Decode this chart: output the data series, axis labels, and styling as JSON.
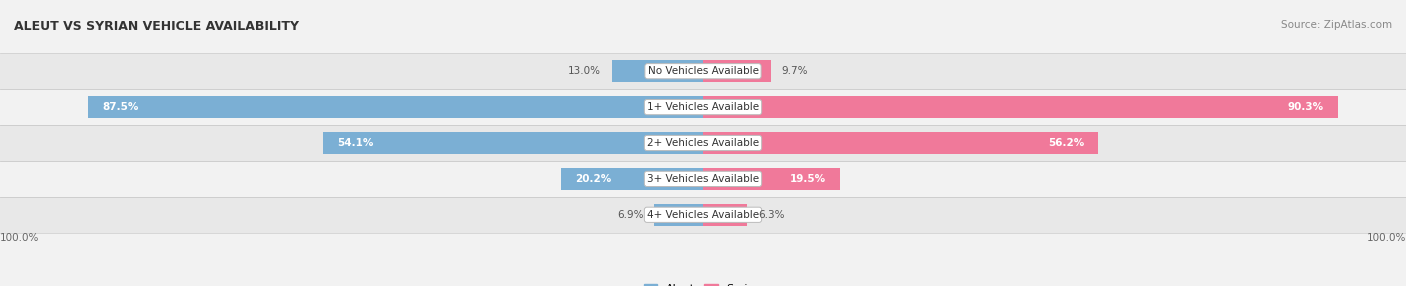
{
  "title": "ALEUT VS SYRIAN VEHICLE AVAILABILITY",
  "source": "Source: ZipAtlas.com",
  "categories": [
    "No Vehicles Available",
    "1+ Vehicles Available",
    "2+ Vehicles Available",
    "3+ Vehicles Available",
    "4+ Vehicles Available"
  ],
  "aleut_values": [
    13.0,
    87.5,
    54.1,
    20.2,
    6.9
  ],
  "syrian_values": [
    9.7,
    90.3,
    56.2,
    19.5,
    6.3
  ],
  "aleut_color": "#7bafd4",
  "syrian_color": "#f0799a",
  "background_color": "#f2f2f2",
  "row_colors": [
    "#e8e8e8",
    "#f2f2f2"
  ],
  "bar_height": 0.62,
  "max_value": 100.0,
  "label_threshold": 15,
  "figsize": [
    14.06,
    2.86
  ],
  "dpi": 100
}
